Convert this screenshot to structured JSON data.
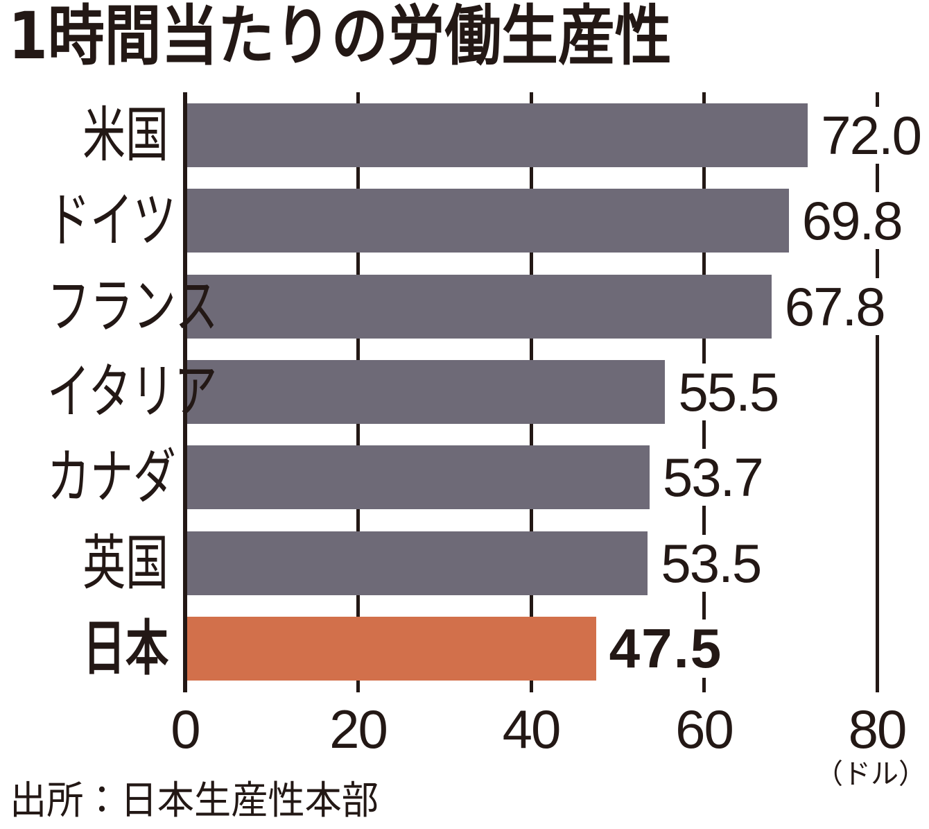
{
  "title": "1時間当たりの労働生産性",
  "source": "出所：日本生産性本部",
  "chart_data": {
    "type": "bar",
    "orientation": "horizontal",
    "title": "1時間当たりの労働生産性",
    "categories": [
      "米国",
      "ドイツ",
      "フランス",
      "イタリア",
      "カナダ",
      "英国",
      "日本"
    ],
    "values": [
      72.0,
      69.8,
      67.8,
      55.5,
      53.7,
      53.5,
      47.5
    ],
    "value_labels": [
      "72.0",
      "69.8",
      "67.8",
      "55.5",
      "53.7",
      "53.5",
      "47.5"
    ],
    "highlight_index": 6,
    "highlight_category": "日本",
    "xlim": [
      0,
      80
    ],
    "xticks": [
      0,
      20,
      40,
      60,
      80
    ],
    "xtick_labels": [
      "0",
      "20",
      "40",
      "60",
      "80"
    ],
    "unit_label": "（ドル）",
    "grid": true,
    "legend": "none",
    "colors": {
      "bar": "#6E6A77",
      "highlight": "#D2704B",
      "text": "#231815",
      "background": "#FFFFFF"
    },
    "source": "出所：日本生産性本部"
  }
}
